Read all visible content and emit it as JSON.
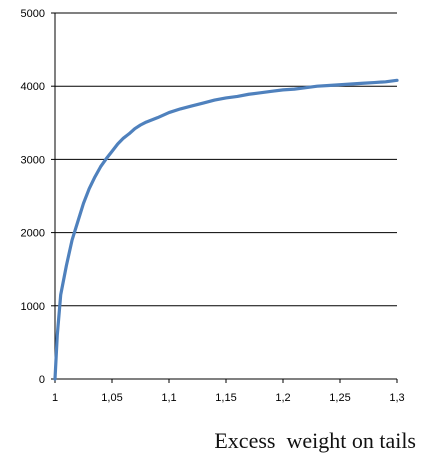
{
  "chart_data": {
    "type": "line",
    "title": "",
    "xlabel": "Excess  weight on tails",
    "ylabel": "",
    "xlim": [
      1,
      1.3
    ],
    "ylim": [
      0,
      5000
    ],
    "grid": {
      "horizontal": true,
      "vertical": false
    },
    "x_ticks": [
      1,
      1.05,
      1.1,
      1.15,
      1.2,
      1.25,
      1.3
    ],
    "x_tick_labels": [
      "1",
      "1,05",
      "1,1",
      "1,15",
      "1,2",
      "1,25",
      "1,3"
    ],
    "y_ticks": [
      0,
      1000,
      2000,
      3000,
      4000,
      5000
    ],
    "y_tick_labels": [
      "0",
      "1000",
      "2000",
      "3000",
      "4000",
      "5000"
    ],
    "series": [
      {
        "color": "#4f81bd",
        "x": [
          1.0,
          1.002,
          1.005,
          1.01,
          1.015,
          1.02,
          1.025,
          1.03,
          1.035,
          1.04,
          1.045,
          1.05,
          1.055,
          1.06,
          1.065,
          1.07,
          1.075,
          1.08,
          1.09,
          1.1,
          1.11,
          1.12,
          1.13,
          1.14,
          1.15,
          1.16,
          1.17,
          1.18,
          1.19,
          1.2,
          1.21,
          1.22,
          1.23,
          1.24,
          1.25,
          1.26,
          1.27,
          1.28,
          1.29,
          1.3
        ],
        "y": [
          0,
          600,
          1150,
          1550,
          1900,
          2150,
          2400,
          2600,
          2760,
          2900,
          3010,
          3110,
          3210,
          3290,
          3350,
          3420,
          3470,
          3510,
          3570,
          3640,
          3690,
          3730,
          3770,
          3810,
          3840,
          3860,
          3890,
          3910,
          3930,
          3950,
          3960,
          3980,
          4000,
          4010,
          4020,
          4030,
          4040,
          4050,
          4060,
          4080
        ]
      }
    ]
  }
}
